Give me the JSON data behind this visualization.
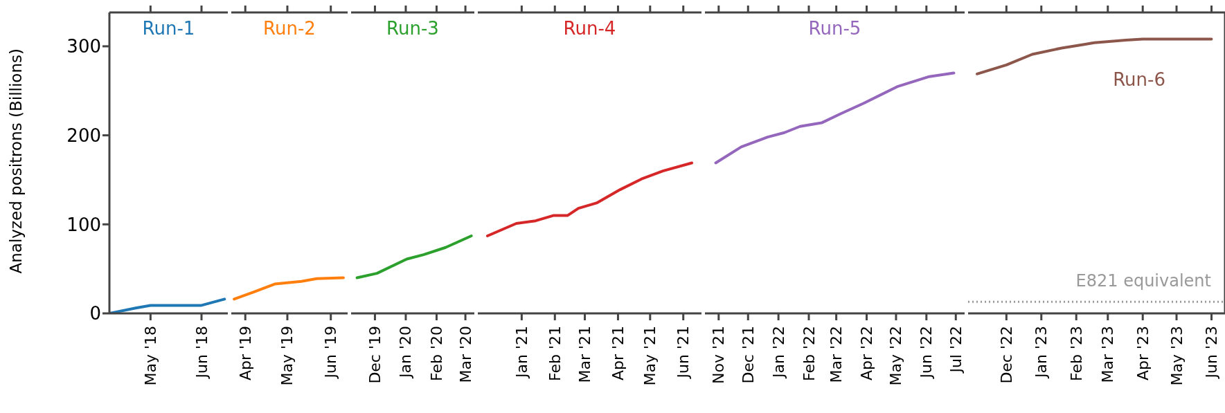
{
  "chart_data": [
    {
      "type": "line",
      "ylabel": "Analyzed positrons (Billions)",
      "ylim": [
        0,
        338
      ],
      "yticks": [
        0,
        100,
        200,
        300
      ],
      "xlim": [
        "2018-04-06",
        "2018-06-17"
      ],
      "xticks": [
        {
          "value": "2018-05-01",
          "label": "May '18"
        },
        {
          "value": "2018-06-01",
          "label": "Jun '18"
        }
      ],
      "grid": false,
      "marker": "none",
      "line_style": "solid",
      "series": [
        {
          "name": "Run-1",
          "color": "#1f77b4",
          "x": [
            "2018-04-06",
            "2018-04-22",
            "2018-05-01",
            "2018-06-01",
            "2018-06-15"
          ],
          "values": [
            0,
            6,
            9,
            9,
            16
          ]
        }
      ]
    },
    {
      "type": "line",
      "ylim": [
        0,
        338
      ],
      "yticks": [
        0,
        100,
        200,
        300
      ],
      "tick_labels": "x",
      "xlim": [
        "2019-03-22",
        "2019-06-13"
      ],
      "xticks": [
        {
          "value": "2019-04-01",
          "label": "Apr '19"
        },
        {
          "value": "2019-05-01",
          "label": "May '19"
        },
        {
          "value": "2019-06-01",
          "label": "Jun '19"
        }
      ],
      "grid": false,
      "marker": "none",
      "line_style": "solid",
      "series": [
        {
          "name": "Run-2",
          "color": "#ff7f0e",
          "x": [
            "2019-03-24",
            "2019-04-07",
            "2019-04-22",
            "2019-05-11",
            "2019-05-22",
            "2019-06-10"
          ],
          "values": [
            16,
            24,
            33,
            36,
            39,
            40
          ]
        }
      ]
    },
    {
      "type": "line",
      "ylim": [
        0,
        338
      ],
      "yticks": [
        0,
        100,
        200,
        300
      ],
      "tick_labels": "x",
      "xlim": [
        "2019-11-07",
        "2020-03-10"
      ],
      "xticks": [
        {
          "value": "2019-12-01",
          "label": "Dec '19"
        },
        {
          "value": "2020-01-01",
          "label": "Jan '20"
        },
        {
          "value": "2020-02-01",
          "label": "Feb '20"
        },
        {
          "value": "2020-03-01",
          "label": "Mar '20"
        }
      ],
      "grid": false,
      "marker": "none",
      "line_style": "solid",
      "series": [
        {
          "name": "Run-3",
          "color": "#2ca02c",
          "x": [
            "2019-11-13",
            "2019-12-03",
            "2020-01-02",
            "2020-01-19",
            "2020-02-10",
            "2020-03-07"
          ],
          "values": [
            40,
            45,
            61,
            66,
            74,
            87
          ]
        }
      ]
    },
    {
      "type": "line",
      "ylim": [
        0,
        338
      ],
      "yticks": [
        0,
        100,
        200,
        300
      ],
      "tick_labels": "x",
      "xlim": [
        "2020-11-21",
        "2021-06-18"
      ],
      "xticks": [
        {
          "value": "2021-01-01",
          "label": "Jan '21"
        },
        {
          "value": "2021-02-01",
          "label": "Feb '21"
        },
        {
          "value": "2021-03-01",
          "label": "Mar '21"
        },
        {
          "value": "2021-04-01",
          "label": "Apr '21"
        },
        {
          "value": "2021-05-01",
          "label": "May '21"
        },
        {
          "value": "2021-06-01",
          "label": "Jun '21"
        }
      ],
      "grid": false,
      "marker": "none",
      "line_style": "solid",
      "series": [
        {
          "name": "Run-4",
          "color": "#d62728",
          "x": [
            "2020-11-30",
            "2020-12-27",
            "2021-01-14",
            "2021-01-31",
            "2021-02-13",
            "2021-02-23",
            "2021-03-12",
            "2021-04-03",
            "2021-04-23",
            "2021-05-13",
            "2021-06-09"
          ],
          "values": [
            87,
            101,
            104,
            110,
            110,
            118,
            124,
            139,
            151,
            160,
            169
          ]
        }
      ]
    },
    {
      "type": "line",
      "ylim": [
        0,
        338
      ],
      "yticks": [
        0,
        100,
        200,
        300
      ],
      "tick_labels": "x",
      "xlim": [
        "2021-10-18",
        "2022-07-10"
      ],
      "xticks": [
        {
          "value": "2021-11-01",
          "label": "Nov '21"
        },
        {
          "value": "2021-12-01",
          "label": "Dec '21"
        },
        {
          "value": "2022-01-01",
          "label": "Jan '22"
        },
        {
          "value": "2022-02-01",
          "label": "Feb '22"
        },
        {
          "value": "2022-03-01",
          "label": "Mar '22"
        },
        {
          "value": "2022-04-01",
          "label": "Apr '22"
        },
        {
          "value": "2022-05-01",
          "label": "May '22"
        },
        {
          "value": "2022-06-01",
          "label": "Jun '22"
        },
        {
          "value": "2022-07-01",
          "label": "Jul '22"
        }
      ],
      "grid": false,
      "marker": "none",
      "line_style": "solid",
      "series": [
        {
          "name": "Run-5",
          "color": "#9467bd",
          "x": [
            "2021-10-29",
            "2021-11-24",
            "2021-12-21",
            "2022-01-07",
            "2022-01-23",
            "2022-02-14",
            "2022-03-05",
            "2022-03-29",
            "2022-05-03",
            "2022-06-04",
            "2022-06-29"
          ],
          "values": [
            169,
            187,
            198,
            203,
            210,
            214,
            224,
            236,
            255,
            266,
            270
          ]
        }
      ]
    },
    {
      "type": "line",
      "ylim": [
        0,
        338
      ],
      "yticks": [
        0,
        100,
        200,
        300
      ],
      "tick_labels": "x",
      "xlim": [
        "2022-10-28",
        "2023-06-13"
      ],
      "xticks": [
        {
          "value": "2022-12-01",
          "label": "Dec '22"
        },
        {
          "value": "2023-01-01",
          "label": "Jan '23"
        },
        {
          "value": "2023-02-01",
          "label": "Feb '23"
        },
        {
          "value": "2023-03-01",
          "label": "Mar '23"
        },
        {
          "value": "2023-04-01",
          "label": "Apr '23"
        },
        {
          "value": "2023-05-01",
          "label": "May '23"
        },
        {
          "value": "2023-06-01",
          "label": "Jun '23"
        }
      ],
      "grid": false,
      "marker": "none",
      "line_style": "solid",
      "ref_lines": [
        {
          "axis": "y",
          "value": 13,
          "label": "E821 equivalent",
          "color": "#999999",
          "line_style": "dotted"
        }
      ],
      "series": [
        {
          "name": "Run-6",
          "color": "#8c564b",
          "x": [
            "2022-11-05",
            "2022-12-01",
            "2022-12-24",
            "2023-01-19",
            "2023-02-08",
            "2023-02-17",
            "2023-03-17",
            "2023-04-01",
            "2023-06-01"
          ],
          "values": [
            269,
            279,
            291,
            298,
            302,
            304,
            307,
            308,
            308
          ]
        }
      ]
    }
  ]
}
